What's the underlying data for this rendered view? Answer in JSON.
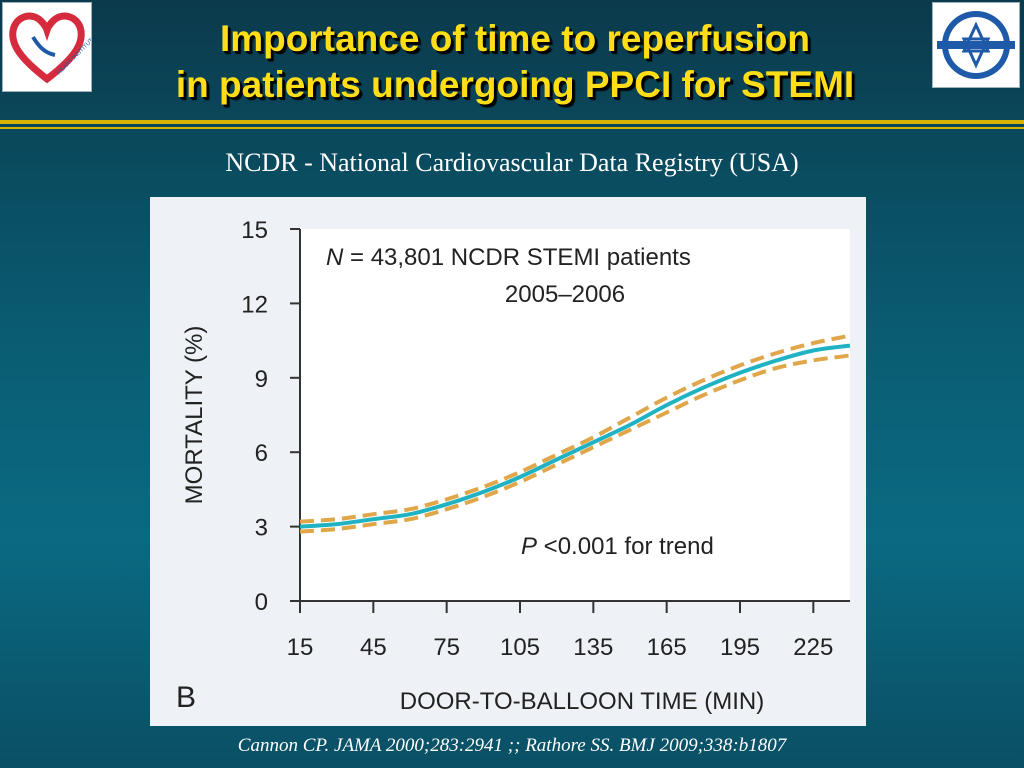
{
  "slide": {
    "title_line1": "Importance of time to reperfusion",
    "title_line2": "in patients undergoing PPCI for STEMI",
    "subtitle": "NCDR - National Cardiovascular Data Registry (USA)",
    "citation": "Cannon CP. JAMA 2000;283:2941 ;; Rathore SS. BMJ 2009;338:b1807",
    "left_logo_text": "HEART INSTITUTE",
    "colors": {
      "title": "#ffde17",
      "rule": "#d6b300",
      "curve": "#1fb2c2",
      "confidence_band": "#e0a64a",
      "logo_heart": "#d52b3d",
      "logo_blue": "#1e5aa8"
    }
  },
  "chart_data": {
    "type": "line",
    "panel_label": "B",
    "xlabel": "DOOR-TO-BALLOON TIME (MIN)",
    "ylabel": "MORTALITY (%)",
    "xlim": [
      15,
      240
    ],
    "ylim": [
      0,
      15
    ],
    "x_ticks": [
      15,
      45,
      75,
      105,
      135,
      165,
      195,
      225
    ],
    "y_ticks": [
      0,
      3,
      6,
      9,
      12,
      15
    ],
    "annotation_line1_italic": "N",
    "annotation_line1_rest": " = 43,801 NCDR STEMI patients",
    "annotation_line2": "2005–2006",
    "pvalue_italic": "P",
    "pvalue_rest": " <0.001 for trend",
    "x": [
      15,
      30,
      45,
      60,
      75,
      90,
      105,
      120,
      135,
      150,
      165,
      180,
      195,
      210,
      225,
      240
    ],
    "series": [
      {
        "role": "estimate",
        "values": [
          3.0,
          3.1,
          3.3,
          3.5,
          3.9,
          4.4,
          5.0,
          5.7,
          6.4,
          7.1,
          7.9,
          8.6,
          9.2,
          9.7,
          10.1,
          10.3
        ]
      },
      {
        "role": "upper",
        "values": [
          3.2,
          3.3,
          3.5,
          3.7,
          4.1,
          4.6,
          5.2,
          5.9,
          6.6,
          7.4,
          8.2,
          8.9,
          9.5,
          10.0,
          10.4,
          10.7
        ]
      },
      {
        "role": "lower",
        "values": [
          2.8,
          2.9,
          3.1,
          3.3,
          3.7,
          4.2,
          4.8,
          5.5,
          6.2,
          6.9,
          7.6,
          8.3,
          8.9,
          9.4,
          9.7,
          9.9
        ]
      }
    ]
  }
}
